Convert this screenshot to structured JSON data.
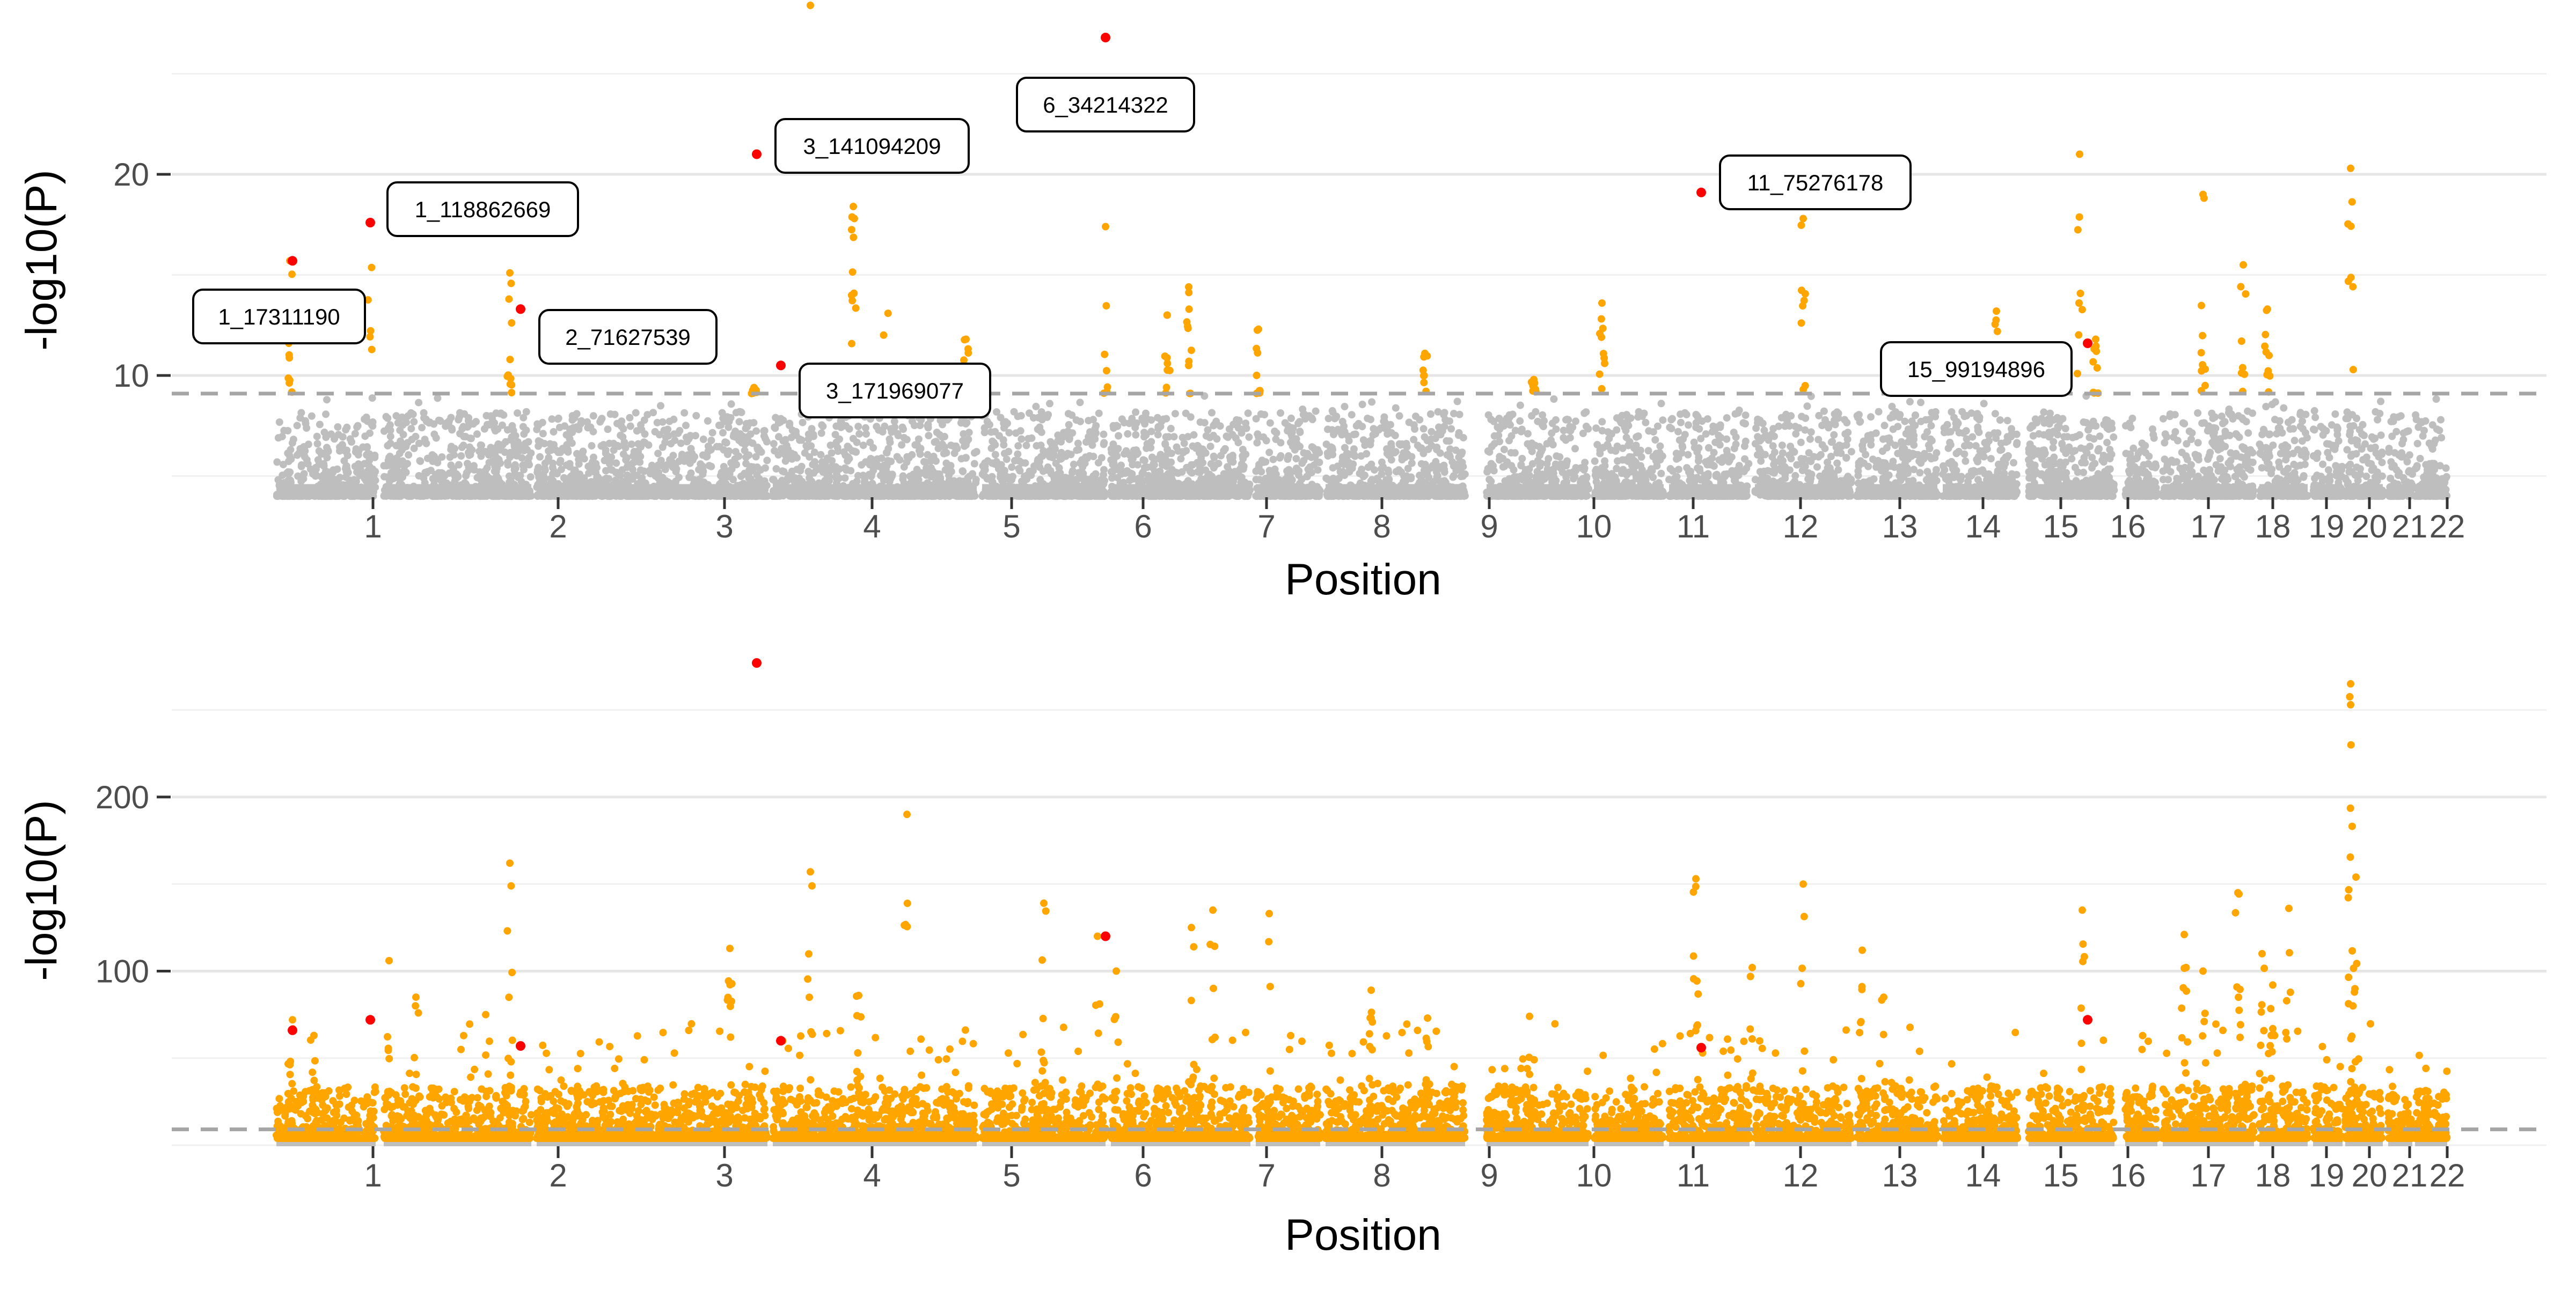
{
  "chart_data": [
    {
      "type": "scatter",
      "subtype": "manhattan",
      "xlabel": "Position",
      "ylabel": "-log10(P)",
      "ylim": [
        4,
        26
      ],
      "yticks": [
        10,
        20
      ],
      "threshold": 9.1,
      "chromosomes": [
        "1",
        "2",
        "3",
        "4",
        "5",
        "6",
        "7",
        "8",
        "9",
        "10",
        "11",
        "12",
        "13",
        "14",
        "15",
        "16",
        "17",
        "18",
        "19",
        "20",
        "21",
        "22"
      ],
      "highlighted_points": [
        {
          "chr": "1",
          "label": "1_17311190",
          "y": 15.7
        },
        {
          "chr": "1",
          "label": "1_118862669",
          "y": 17.6
        },
        {
          "chr": "2",
          "label": "2_71627539",
          "y": 13.3
        },
        {
          "chr": "3",
          "label": "3_141094209",
          "y": 21.0
        },
        {
          "chr": "3",
          "label": "3_171969077",
          "y": 10.5
        },
        {
          "chr": "6",
          "label": "6_34214322",
          "y": 26.8
        },
        {
          "chr": "11",
          "label": "11_75276178",
          "y": 19.1
        },
        {
          "chr": "15",
          "label": "15_99194896",
          "y": 11.6
        }
      ],
      "annotations": [
        "1_17311190",
        "1_118862669",
        "2_71627539",
        "3_141094209",
        "3_171969077",
        "6_34214322",
        "11_75276178",
        "15_99194896"
      ],
      "colors": {
        "background_points": "#bebebe",
        "significant_points": "#ffa500",
        "highlight": "#ff0000",
        "threshold_line": "#a6a6a6"
      }
    },
    {
      "type": "scatter",
      "subtype": "manhattan",
      "xlabel": "Position",
      "ylabel": "-log10(P)",
      "ylim": [
        0,
        285
      ],
      "yticks": [
        100,
        200
      ],
      "threshold": 9.1,
      "chromosomes": [
        "1",
        "2",
        "3",
        "4",
        "5",
        "6",
        "7",
        "8",
        "9",
        "10",
        "11",
        "12",
        "13",
        "14",
        "15",
        "16",
        "17",
        "18",
        "19",
        "20",
        "21",
        "22"
      ],
      "highlighted_points": [
        {
          "chr": "1",
          "y": 66
        },
        {
          "chr": "1",
          "y": 72
        },
        {
          "chr": "2",
          "y": 57
        },
        {
          "chr": "3",
          "y": 277
        },
        {
          "chr": "3",
          "y": 60
        },
        {
          "chr": "6",
          "y": 120
        },
        {
          "chr": "11",
          "y": 56
        },
        {
          "chr": "15",
          "y": 72
        }
      ],
      "colors": {
        "background_points": "#bebebe",
        "significant_points": "#ffa500",
        "highlight": "#ff0000",
        "threshold_line": "#a6a6a6"
      }
    }
  ]
}
